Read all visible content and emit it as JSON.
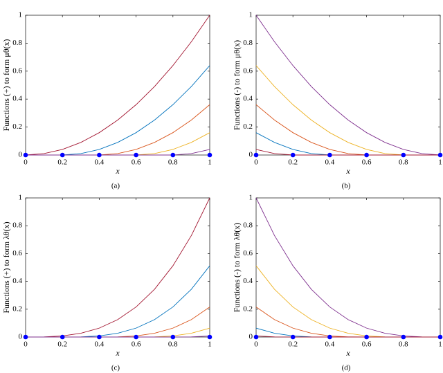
{
  "chart_data": [
    {
      "type": "line",
      "ylabel": "Functions (+) to form μθ(x)",
      "xlabel": "x",
      "caption": "(a)",
      "xlim": [
        0,
        1
      ],
      "ylim": [
        0,
        1
      ],
      "xticks": [
        0,
        0.2,
        0.4,
        0.6,
        0.8,
        1
      ],
      "yticks": [
        0,
        0.2,
        0.4,
        0.6,
        0.8,
        1
      ],
      "x": [
        0,
        0.1,
        0.2,
        0.3,
        0.4,
        0.5,
        0.6,
        0.7,
        0.8,
        0.9,
        1
      ],
      "series": [
        {
          "color": "#a2142f",
          "values": [
            0,
            0.01,
            0.04,
            0.09,
            0.16,
            0.25,
            0.36,
            0.49,
            0.64,
            0.81,
            1
          ]
        },
        {
          "color": "#0072bd",
          "values": [
            0,
            0,
            0,
            0.01,
            0.04,
            0.09,
            0.16,
            0.25,
            0.36,
            0.49,
            0.64
          ]
        },
        {
          "color": "#d95319",
          "values": [
            0,
            0,
            0,
            0,
            0,
            0.01,
            0.04,
            0.09,
            0.16,
            0.25,
            0.36
          ]
        },
        {
          "color": "#edb120",
          "values": [
            0,
            0,
            0,
            0,
            0,
            0,
            0,
            0.01,
            0.04,
            0.09,
            0.16
          ]
        },
        {
          "color": "#7e2f8e",
          "values": [
            0,
            0,
            0,
            0,
            0,
            0,
            0,
            0,
            0,
            0.01,
            0.04
          ]
        }
      ],
      "points": {
        "color": "#0000ff",
        "x": [
          0,
          0.2,
          0.4,
          0.6,
          0.8,
          1
        ],
        "values": [
          0,
          0,
          0,
          0,
          0,
          0
        ]
      }
    },
    {
      "type": "line",
      "ylabel": "Functions (-) to form μθ(x)",
      "xlabel": "x",
      "caption": "(b)",
      "xlim": [
        0,
        1
      ],
      "ylim": [
        0,
        1
      ],
      "xticks": [
        0,
        0.2,
        0.4,
        0.6,
        0.8,
        1
      ],
      "yticks": [
        0,
        0.2,
        0.4,
        0.6,
        0.8,
        1
      ],
      "x": [
        0,
        0.1,
        0.2,
        0.3,
        0.4,
        0.5,
        0.6,
        0.7,
        0.8,
        0.9,
        1
      ],
      "series": [
        {
          "color": "#7e2f8e",
          "values": [
            1,
            0.81,
            0.64,
            0.49,
            0.36,
            0.25,
            0.16,
            0.09,
            0.04,
            0.01,
            0
          ]
        },
        {
          "color": "#edb120",
          "values": [
            0.64,
            0.49,
            0.36,
            0.25,
            0.16,
            0.09,
            0.04,
            0.01,
            0,
            0,
            0
          ]
        },
        {
          "color": "#d95319",
          "values": [
            0.36,
            0.25,
            0.16,
            0.09,
            0.04,
            0.01,
            0,
            0,
            0,
            0,
            0
          ]
        },
        {
          "color": "#0072bd",
          "values": [
            0.16,
            0.09,
            0.04,
            0.01,
            0,
            0,
            0,
            0,
            0,
            0,
            0
          ]
        },
        {
          "color": "#a2142f",
          "values": [
            0.04,
            0.01,
            0,
            0,
            0,
            0,
            0,
            0,
            0,
            0,
            0
          ]
        }
      ],
      "points": {
        "color": "#0000ff",
        "x": [
          0,
          0.2,
          0.4,
          0.6,
          0.8,
          1
        ],
        "values": [
          0,
          0,
          0,
          0,
          0,
          0
        ]
      }
    },
    {
      "type": "line",
      "ylabel": "Functions (+) to form λθ(x)",
      "xlabel": "x",
      "caption": "(c)",
      "xlim": [
        0,
        1
      ],
      "ylim": [
        0,
        1
      ],
      "xticks": [
        0,
        0.2,
        0.4,
        0.6,
        0.8,
        1
      ],
      "yticks": [
        0,
        0.2,
        0.4,
        0.6,
        0.8,
        1
      ],
      "x": [
        0,
        0.1,
        0.2,
        0.3,
        0.4,
        0.5,
        0.6,
        0.7,
        0.8,
        0.9,
        1
      ],
      "series": [
        {
          "color": "#a2142f",
          "values": [
            0,
            0.001,
            0.008,
            0.027,
            0.064,
            0.125,
            0.216,
            0.343,
            0.512,
            0.729,
            1
          ]
        },
        {
          "color": "#0072bd",
          "values": [
            0,
            0,
            0,
            0.001,
            0.008,
            0.027,
            0.064,
            0.125,
            0.216,
            0.343,
            0.512
          ]
        },
        {
          "color": "#d95319",
          "values": [
            0,
            0,
            0,
            0,
            0,
            0.001,
            0.008,
            0.027,
            0.064,
            0.125,
            0.216
          ]
        },
        {
          "color": "#edb120",
          "values": [
            0,
            0,
            0,
            0,
            0,
            0,
            0,
            0.001,
            0.008,
            0.027,
            0.064
          ]
        },
        {
          "color": "#7e2f8e",
          "values": [
            0,
            0,
            0,
            0,
            0,
            0,
            0,
            0,
            0,
            0.001,
            0.008
          ]
        }
      ],
      "points": {
        "color": "#0000ff",
        "x": [
          0,
          0.2,
          0.4,
          0.6,
          0.8,
          1
        ],
        "values": [
          0,
          0,
          0,
          0,
          0,
          0
        ]
      }
    },
    {
      "type": "line",
      "ylabel": "Functions (-) to form λθ(x)",
      "xlabel": "x",
      "caption": "(d)",
      "xlim": [
        0,
        1
      ],
      "ylim": [
        0,
        1
      ],
      "xticks": [
        0,
        0.2,
        0.4,
        0.6,
        0.8,
        1
      ],
      "yticks": [
        0,
        0.2,
        0.4,
        0.6,
        0.8,
        1
      ],
      "x": [
        0,
        0.1,
        0.2,
        0.3,
        0.4,
        0.5,
        0.6,
        0.7,
        0.8,
        0.9,
        1
      ],
      "series": [
        {
          "color": "#7e2f8e",
          "values": [
            1,
            0.729,
            0.512,
            0.343,
            0.216,
            0.125,
            0.064,
            0.027,
            0.008,
            0.001,
            0
          ]
        },
        {
          "color": "#edb120",
          "values": [
            0.512,
            0.343,
            0.216,
            0.125,
            0.064,
            0.027,
            0.008,
            0.001,
            0,
            0,
            0
          ]
        },
        {
          "color": "#d95319",
          "values": [
            0.216,
            0.125,
            0.064,
            0.027,
            0.008,
            0.001,
            0,
            0,
            0,
            0,
            0
          ]
        },
        {
          "color": "#0072bd",
          "values": [
            0.064,
            0.027,
            0.008,
            0.001,
            0,
            0,
            0,
            0,
            0,
            0,
            0
          ]
        },
        {
          "color": "#a2142f",
          "values": [
            0.008,
            0.001,
            0,
            0,
            0,
            0,
            0,
            0,
            0,
            0,
            0
          ]
        }
      ],
      "points": {
        "color": "#0000ff",
        "x": [
          0,
          0.2,
          0.4,
          0.6,
          0.8,
          1
        ],
        "values": [
          0,
          0,
          0,
          0,
          0,
          0
        ]
      }
    }
  ]
}
